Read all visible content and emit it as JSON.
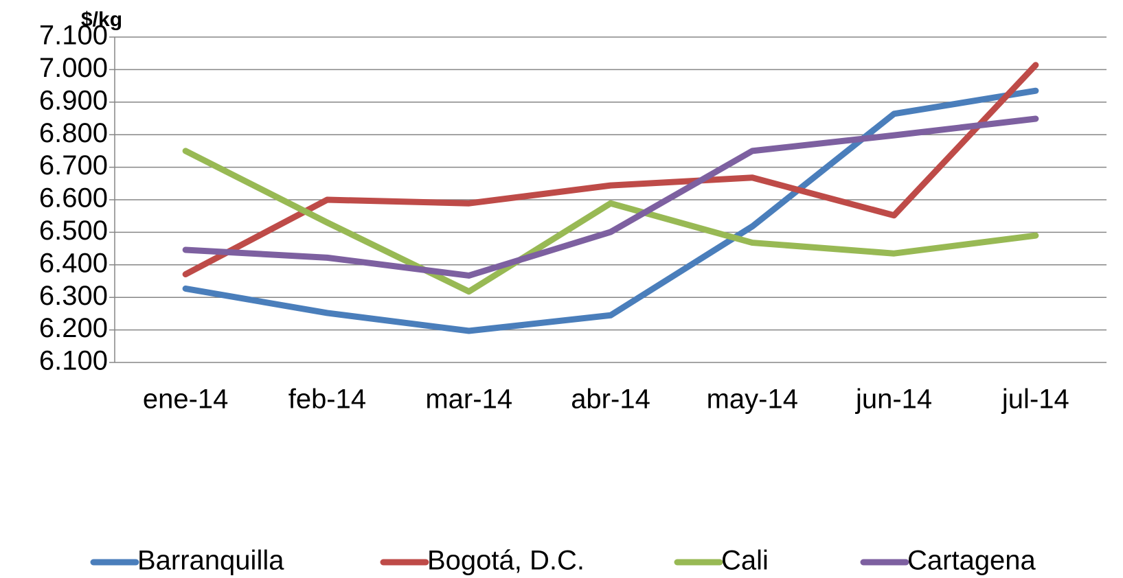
{
  "chart_data": {
    "type": "line",
    "y_axis_label": "$/kg",
    "categories": [
      "ene-14",
      "feb-14",
      "mar-14",
      "abr-14",
      "may-14",
      "jun-14",
      "jul-14"
    ],
    "series": [
      {
        "name": "Barranquilla",
        "color": "#4a7ebb",
        "values": [
          6327,
          6252,
          6197,
          6245,
          6518,
          6864,
          6935
        ]
      },
      {
        "name": "Bogotá, D.C.",
        "color": "#be4b48",
        "values": [
          6371,
          6600,
          6589,
          6644,
          6668,
          6552,
          7014
        ]
      },
      {
        "name": "Cali",
        "color": "#98b954",
        "values": [
          6750,
          6530,
          6318,
          6589,
          6468,
          6435,
          6490
        ]
      },
      {
        "name": "Cartagena",
        "color": "#7d60a0",
        "values": [
          6446,
          6422,
          6367,
          6501,
          6750,
          6798,
          6849
        ]
      }
    ],
    "ylim": [
      6100,
      7100
    ],
    "yticks": [
      {
        "value": 6100,
        "label": "6.100"
      },
      {
        "value": 6200,
        "label": "6.200"
      },
      {
        "value": 6300,
        "label": "6.300"
      },
      {
        "value": 6400,
        "label": "6.400"
      },
      {
        "value": 6500,
        "label": "6.500"
      },
      {
        "value": 6600,
        "label": "6.600"
      },
      {
        "value": 6700,
        "label": "6.700"
      },
      {
        "value": 6800,
        "label": "6.800"
      },
      {
        "value": 6900,
        "label": "6.900"
      },
      {
        "value": 7000,
        "label": "7.000"
      },
      {
        "value": 7100,
        "label": "7.100"
      }
    ],
    "grid": true,
    "legend": "bottom"
  }
}
